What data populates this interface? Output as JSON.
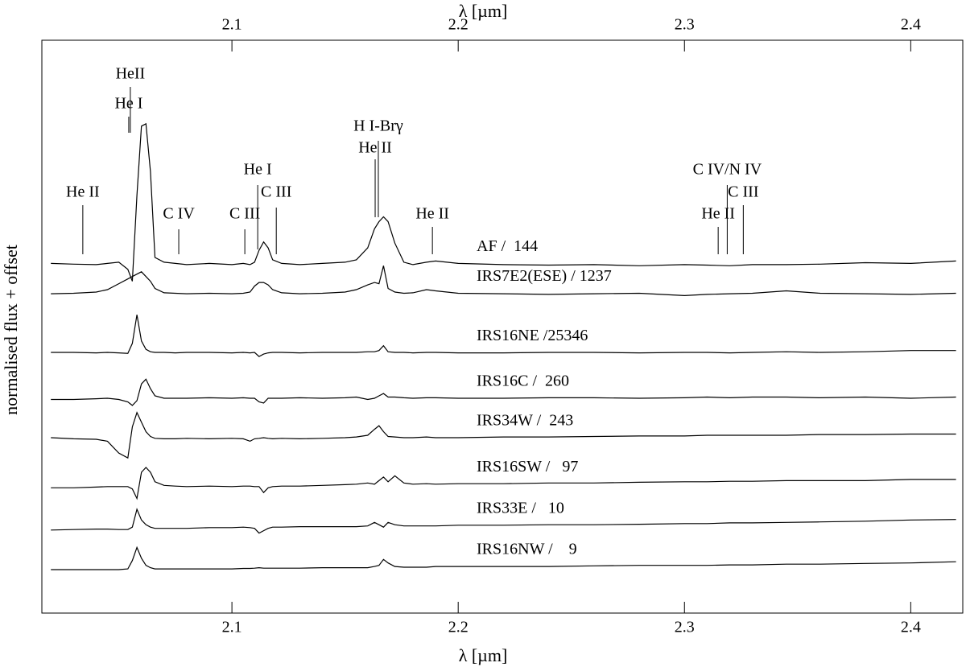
{
  "chart_data": {
    "type": "line",
    "xlabel": "λ [µm]",
    "ylabel": "normalised flux + offset",
    "xlim": [
      2.016,
      2.423
    ],
    "xticks": [
      2.1,
      2.2,
      2.3,
      2.4
    ],
    "ylim": [
      0,
      24
    ],
    "color": "#000000",
    "x": [
      2.02,
      2.03,
      2.04,
      2.045,
      2.05,
      2.054,
      2.056,
      2.058,
      2.06,
      2.062,
      2.064,
      2.066,
      2.07,
      2.075,
      2.08,
      2.09,
      2.1,
      2.105,
      2.108,
      2.11,
      2.112,
      2.114,
      2.116,
      2.118,
      2.122,
      2.13,
      2.14,
      2.15,
      2.155,
      2.16,
      2.163,
      2.165,
      2.167,
      2.169,
      2.172,
      2.176,
      2.18,
      2.186,
      2.19,
      2.2,
      2.22,
      2.24,
      2.26,
      2.28,
      2.3,
      2.31,
      2.32,
      2.33,
      2.345,
      2.36,
      2.38,
      2.4,
      2.42
    ],
    "series": [
      {
        "name": "AF /  144",
        "values": [
          14.65,
          14.62,
          14.6,
          14.65,
          14.7,
          14.4,
          13.9,
          17.5,
          20.4,
          20.5,
          18.5,
          14.9,
          14.7,
          14.65,
          14.6,
          14.65,
          14.6,
          14.65,
          14.6,
          14.7,
          15.2,
          15.55,
          15.3,
          14.8,
          14.65,
          14.6,
          14.65,
          14.7,
          14.8,
          15.3,
          16.1,
          16.4,
          16.6,
          16.4,
          15.5,
          14.7,
          14.6,
          14.7,
          14.75,
          14.65,
          14.6,
          14.58,
          14.6,
          14.55,
          14.6,
          14.58,
          14.55,
          14.6,
          14.6,
          14.62,
          14.68,
          14.65,
          14.75
        ]
      },
      {
        "name": "IRS7E2(ESE) / 1237",
        "values": [
          13.38,
          13.4,
          13.45,
          13.55,
          13.8,
          14.0,
          14.1,
          14.2,
          14.3,
          14.1,
          13.9,
          13.6,
          13.42,
          13.4,
          13.38,
          13.4,
          13.38,
          13.4,
          13.45,
          13.7,
          13.85,
          13.85,
          13.75,
          13.55,
          13.42,
          13.38,
          13.4,
          13.45,
          13.55,
          13.75,
          13.85,
          13.8,
          14.55,
          13.6,
          13.45,
          13.4,
          13.42,
          13.55,
          13.5,
          13.4,
          13.38,
          13.35,
          13.38,
          13.4,
          13.3,
          13.35,
          13.38,
          13.4,
          13.5,
          13.4,
          13.38,
          13.35,
          13.4
        ]
      },
      {
        "name": "IRS16NE /25346",
        "values": [
          10.92,
          10.92,
          10.9,
          10.92,
          10.9,
          10.88,
          11.3,
          12.5,
          11.4,
          11.05,
          10.95,
          10.92,
          10.92,
          10.9,
          10.92,
          10.92,
          10.9,
          10.92,
          10.9,
          10.92,
          10.75,
          10.85,
          10.9,
          10.92,
          10.92,
          10.9,
          10.92,
          10.92,
          10.92,
          10.95,
          10.95,
          11.0,
          11.2,
          10.95,
          10.92,
          10.92,
          10.9,
          10.92,
          10.92,
          10.9,
          10.9,
          10.92,
          10.92,
          10.9,
          10.92,
          10.92,
          10.9,
          10.92,
          10.95,
          10.92,
          10.95,
          11.0,
          11.0
        ]
      },
      {
        "name": "IRS16C /  260",
        "values": [
          8.95,
          8.95,
          8.98,
          9.0,
          8.95,
          8.85,
          8.7,
          8.9,
          9.6,
          9.8,
          9.4,
          9.1,
          9.0,
          9.0,
          9.0,
          9.02,
          9.0,
          9.02,
          9.0,
          9.0,
          8.85,
          8.8,
          9.0,
          9.0,
          9.0,
          9.02,
          9.0,
          9.02,
          9.05,
          8.95,
          9.0,
          9.1,
          9.2,
          9.05,
          9.05,
          9.02,
          9.0,
          9.02,
          9.02,
          9.0,
          9.0,
          9.02,
          9.02,
          9.0,
          9.02,
          9.05,
          9.02,
          9.05,
          9.05,
          9.02,
          9.05,
          9.0,
          9.05
        ]
      },
      {
        "name": "IRS34W /  243",
        "values": [
          7.35,
          7.3,
          7.28,
          7.2,
          6.7,
          6.5,
          7.8,
          8.4,
          8.0,
          7.6,
          7.4,
          7.32,
          7.3,
          7.3,
          7.32,
          7.3,
          7.32,
          7.3,
          7.2,
          7.3,
          7.32,
          7.35,
          7.32,
          7.3,
          7.32,
          7.3,
          7.32,
          7.35,
          7.38,
          7.45,
          7.7,
          7.85,
          7.6,
          7.4,
          7.38,
          7.35,
          7.35,
          7.38,
          7.35,
          7.35,
          7.38,
          7.38,
          7.4,
          7.42,
          7.42,
          7.45,
          7.45,
          7.45,
          7.45,
          7.48,
          7.48,
          7.5,
          7.5
        ]
      },
      {
        "name": "IRS16SW /   97",
        "values": [
          5.25,
          5.25,
          5.28,
          5.3,
          5.3,
          5.3,
          5.2,
          4.8,
          5.9,
          6.1,
          5.9,
          5.5,
          5.35,
          5.32,
          5.3,
          5.32,
          5.3,
          5.32,
          5.32,
          5.3,
          5.3,
          5.05,
          5.25,
          5.3,
          5.32,
          5.32,
          5.35,
          5.38,
          5.4,
          5.45,
          5.4,
          5.55,
          5.7,
          5.5,
          5.75,
          5.45,
          5.4,
          5.42,
          5.4,
          5.42,
          5.42,
          5.45,
          5.45,
          5.48,
          5.5,
          5.5,
          5.52,
          5.52,
          5.55,
          5.55,
          5.55,
          5.6,
          5.6
        ]
      },
      {
        "name": "IRS33E /   10",
        "values": [
          3.48,
          3.5,
          3.52,
          3.52,
          3.5,
          3.5,
          3.6,
          4.35,
          3.9,
          3.7,
          3.6,
          3.55,
          3.55,
          3.55,
          3.55,
          3.58,
          3.58,
          3.6,
          3.58,
          3.55,
          3.35,
          3.45,
          3.55,
          3.6,
          3.6,
          3.62,
          3.62,
          3.62,
          3.62,
          3.65,
          3.8,
          3.7,
          3.6,
          3.8,
          3.7,
          3.65,
          3.65,
          3.65,
          3.65,
          3.68,
          3.68,
          3.7,
          3.7,
          3.72,
          3.75,
          3.75,
          3.78,
          3.78,
          3.8,
          3.82,
          3.85,
          3.9,
          3.92
        ]
      },
      {
        "name": "IRS16NW /    9",
        "values": [
          1.82,
          1.82,
          1.82,
          1.82,
          1.82,
          1.85,
          2.2,
          2.75,
          2.3,
          2.0,
          1.9,
          1.85,
          1.85,
          1.85,
          1.85,
          1.85,
          1.85,
          1.87,
          1.87,
          1.88,
          1.9,
          1.88,
          1.88,
          1.88,
          1.88,
          1.88,
          1.9,
          1.9,
          1.9,
          1.9,
          1.95,
          2.0,
          2.25,
          2.1,
          1.95,
          1.92,
          1.92,
          1.92,
          1.95,
          1.95,
          1.95,
          1.95,
          1.98,
          2.0,
          2.0,
          2.0,
          2.02,
          2.02,
          2.05,
          2.05,
          2.08,
          2.1,
          2.15
        ]
      }
    ],
    "annotations": [
      {
        "text": "He II",
        "x": 2.0341
      },
      {
        "text": "HeII",
        "x": 2.0551
      },
      {
        "text": "He I",
        "x": 2.0544
      },
      {
        "text": "C IV",
        "x": 2.0765
      },
      {
        "text": "C III",
        "x": 2.1057
      },
      {
        "text": "He I",
        "x": 2.1114
      },
      {
        "text": "C III",
        "x": 2.1196
      },
      {
        "text": "H I-Brγ",
        "x": 2.1647
      },
      {
        "text": "He II",
        "x": 2.1633
      },
      {
        "text": "He II",
        "x": 2.1886
      },
      {
        "text": "C IV/N IV",
        "x": 2.3189
      },
      {
        "text": "C III",
        "x": 2.326
      },
      {
        "text": "He II",
        "x": 2.3149
      }
    ]
  }
}
